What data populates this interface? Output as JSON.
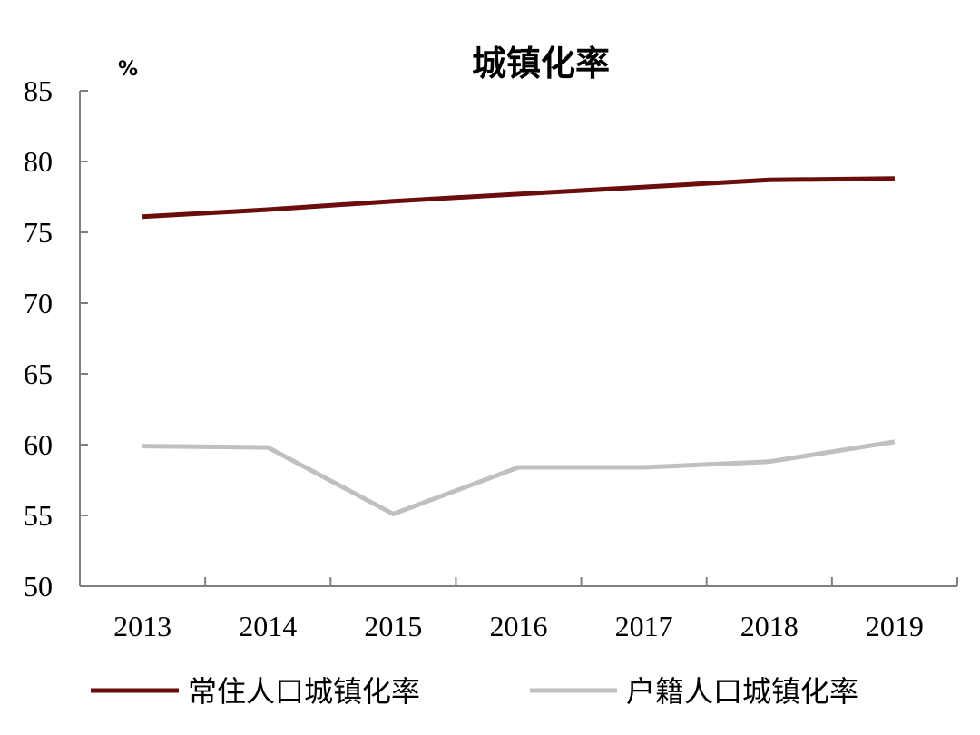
{
  "chart_data": {
    "type": "line",
    "title": "城镇化率",
    "ylabel": "%",
    "xlabel": "",
    "categories": [
      "2013",
      "2014",
      "2015",
      "2016",
      "2017",
      "2018",
      "2019"
    ],
    "ylim": [
      50,
      85
    ],
    "yticks": [
      "50",
      "55",
      "60",
      "65",
      "70",
      "75",
      "80",
      "85"
    ],
    "grid": false,
    "legend_position": "bottom",
    "series": [
      {
        "name": "常住人口城镇化率",
        "color": "#6b0d0d",
        "values": [
          76.1,
          76.6,
          77.2,
          77.7,
          78.2,
          78.7,
          78.8
        ]
      },
      {
        "name": "户籍人口城镇化率",
        "color": "#c0c0c0",
        "values": [
          59.9,
          59.8,
          55.1,
          58.4,
          58.4,
          58.8,
          60.2
        ]
      }
    ]
  }
}
